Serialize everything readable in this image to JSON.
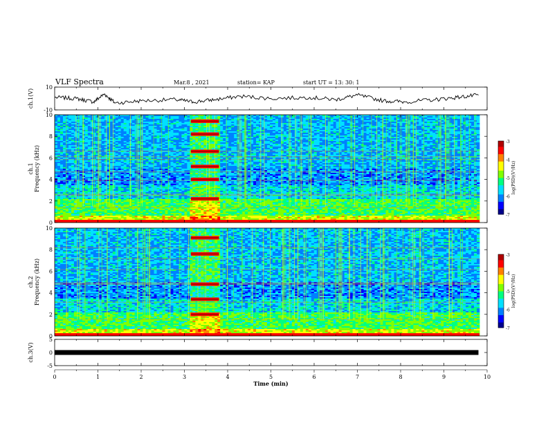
{
  "header": {
    "title": "VLF Spectra",
    "date": "Mar.8 , 2021",
    "station": "station= KAP",
    "start": "start UT = 13: 30: 1"
  },
  "colorbar_label": "log(PSD)(V²/Hz)",
  "colors": {
    "spectrum_scale": [
      "#00008c",
      "#0000ff",
      "#0080ff",
      "#00e0ff",
      "#00ff80",
      "#80ff00",
      "#ffff00",
      "#ff8000",
      "#ff0000",
      "#b00000"
    ]
  },
  "chart_data": [
    {
      "type": "line",
      "panel": "ch1-waveform",
      "ylabel": "ch.1(V)",
      "yticks": [
        "10",
        "-10"
      ],
      "ylim": [
        -10,
        10
      ],
      "xlim": [
        0,
        10
      ],
      "x": [
        0,
        0.5,
        0.9,
        1.15,
        1.4,
        2.0,
        2.8,
        3.2,
        3.7,
        4.3,
        5.0,
        5.9,
        6.5,
        7.0,
        7.6,
        8.1,
        8.8,
        9.3,
        9.8
      ],
      "values": [
        1,
        0,
        -3,
        4,
        -4,
        -2,
        -1,
        -3,
        -1,
        2,
        0,
        1,
        -1,
        3,
        -2,
        -3,
        -1,
        1,
        3
      ]
    },
    {
      "type": "heatmap",
      "panel": "ch1-spectrogram",
      "ylabel": "ch.1 Frequency (kHz)",
      "xlim": [
        0,
        10
      ],
      "ylim": [
        0,
        10
      ],
      "yticks": [
        "0",
        "2",
        "4",
        "6",
        "8",
        "10"
      ],
      "colorbar": {
        "min": -7,
        "max": -3,
        "ticks": [
          "-3",
          "-4",
          "-5",
          "-6",
          "-7"
        ],
        "label": "log(PSD)(V²/Hz)"
      },
      "strong_burst_minutes": [
        3.15,
        3.8
      ],
      "burst_lines_khz": [
        2.2,
        4.0,
        5.2,
        6.6,
        8.2,
        9.4
      ]
    },
    {
      "type": "heatmap",
      "panel": "ch2-spectrogram",
      "ylabel": "ch.2 Frequency (kHz)",
      "xlim": [
        0,
        10
      ],
      "ylim": [
        0,
        10
      ],
      "yticks": [
        "0",
        "2",
        "4",
        "6",
        "8",
        "10"
      ],
      "colorbar": {
        "min": -7,
        "max": -3,
        "ticks": [
          "-3",
          "-4",
          "-5",
          "-6",
          "-7"
        ],
        "label": "log(PSD)(V²/Hz)"
      },
      "strong_burst_minutes": [
        3.15,
        3.8
      ],
      "burst_lines_khz": [
        2.0,
        3.4,
        4.8,
        7.6,
        9.1
      ]
    },
    {
      "type": "line",
      "panel": "ch3-waveform",
      "ylabel": "ch.3(V)",
      "yticks": [
        "5",
        "0",
        "-5"
      ],
      "ylim": [
        -5,
        5
      ],
      "xlim": [
        0,
        10
      ],
      "x": [
        0,
        9.8
      ],
      "values": [
        0,
        0
      ],
      "xlabel": "Time (min)",
      "xticks": [
        "0",
        "1",
        "2",
        "3",
        "4",
        "5",
        "6",
        "7",
        "8",
        "9",
        "10"
      ]
    }
  ]
}
